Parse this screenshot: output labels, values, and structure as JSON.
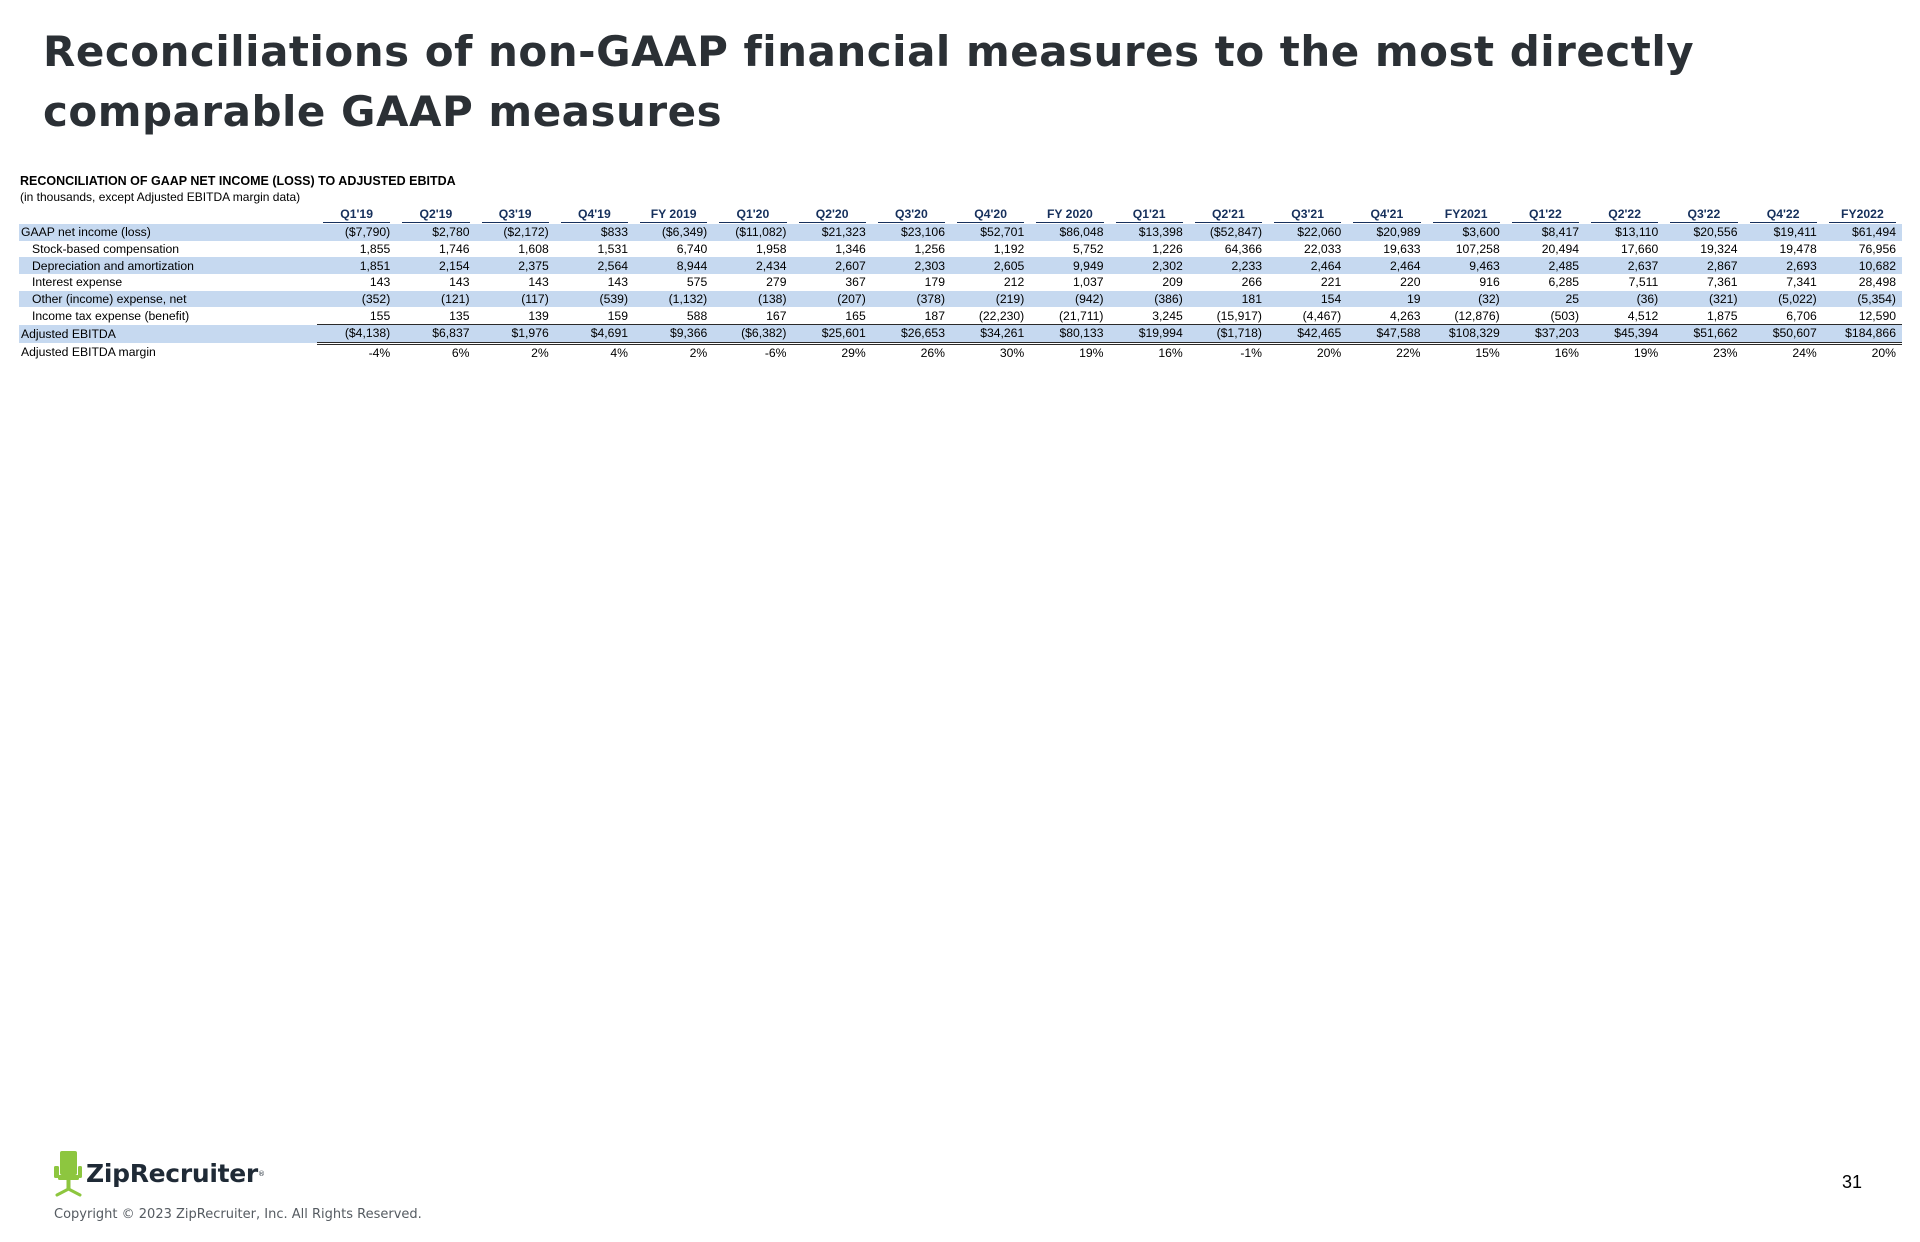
{
  "slide": {
    "title": "Reconciliations of non-GAAP financial measures to the most directly comparable GAAP measures",
    "page_number": "31"
  },
  "table": {
    "heading": "RECONCILIATION OF GAAP NET INCOME (LOSS) TO ADJUSTED EBITDA",
    "subheading": "(in thousands, except Adjusted EBITDA margin data)",
    "columns": [
      "Q1'19",
      "Q2'19",
      "Q3'19",
      "Q4'19",
      "FY 2019",
      "Q1'20",
      "Q2'20",
      "Q3'20",
      "Q4'20",
      "FY 2020",
      "Q1'21",
      "Q2'21",
      "Q3'21",
      "Q4'21",
      "FY2021",
      "Q1'22",
      "Q2'22",
      "Q3'22",
      "Q4'22",
      "FY2022"
    ],
    "rows": [
      {
        "label": "GAAP net income (loss)",
        "values": [
          "($7,790)",
          "$2,780",
          "($2,172)",
          "$833",
          "($6,349)",
          "($11,082)",
          "$21,323",
          "$23,106",
          "$52,701",
          "$86,048",
          "$13,398",
          "($52,847)",
          "$22,060",
          "$20,989",
          "$3,600",
          "$8,417",
          "$13,110",
          "$20,556",
          "$19,411",
          "$61,494"
        ]
      },
      {
        "label": "Stock-based compensation",
        "values": [
          "1,855",
          "1,746",
          "1,608",
          "1,531",
          "6,740",
          "1,958",
          "1,346",
          "1,256",
          "1,192",
          "5,752",
          "1,226",
          "64,366",
          "22,033",
          "19,633",
          "107,258",
          "20,494",
          "17,660",
          "19,324",
          "19,478",
          "76,956"
        ]
      },
      {
        "label": "Depreciation and amortization",
        "values": [
          "1,851",
          "2,154",
          "2,375",
          "2,564",
          "8,944",
          "2,434",
          "2,607",
          "2,303",
          "2,605",
          "9,949",
          "2,302",
          "2,233",
          "2,464",
          "2,464",
          "9,463",
          "2,485",
          "2,637",
          "2,867",
          "2,693",
          "10,682"
        ]
      },
      {
        "label": "Interest expense",
        "values": [
          "143",
          "143",
          "143",
          "143",
          "575",
          "279",
          "367",
          "179",
          "212",
          "1,037",
          "209",
          "266",
          "221",
          "220",
          "916",
          "6,285",
          "7,511",
          "7,361",
          "7,341",
          "28,498"
        ]
      },
      {
        "label": "Other (income) expense, net",
        "values": [
          "(352)",
          "(121)",
          "(117)",
          "(539)",
          "(1,132)",
          "(138)",
          "(207)",
          "(378)",
          "(219)",
          "(942)",
          "(386)",
          "181",
          "154",
          "19",
          "(32)",
          "25",
          "(36)",
          "(321)",
          "(5,022)",
          "(5,354)"
        ]
      },
      {
        "label": "Income tax expense (benefit)",
        "values": [
          "155",
          "135",
          "139",
          "159",
          "588",
          "167",
          "165",
          "187",
          "(22,230)",
          "(21,711)",
          "3,245",
          "(15,917)",
          "(4,467)",
          "4,263",
          "(12,876)",
          "(503)",
          "4,512",
          "1,875",
          "6,706",
          "12,590"
        ]
      },
      {
        "label": "Adjusted EBITDA",
        "values": [
          "($4,138)",
          "$6,837",
          "$1,976",
          "$4,691",
          "$9,366",
          "($6,382)",
          "$25,601",
          "$26,653",
          "$34,261",
          "$80,133",
          "$19,994",
          "($1,718)",
          "$42,465",
          "$47,588",
          "$108,329",
          "$37,203",
          "$45,394",
          "$51,662",
          "$50,607",
          "$184,866"
        ]
      },
      {
        "label": "Adjusted EBITDA margin",
        "values": [
          "-4%",
          "6%",
          "2%",
          "4%",
          "2%",
          "-6%",
          "29%",
          "26%",
          "30%",
          "19%",
          "16%",
          "-1%",
          "20%",
          "22%",
          "15%",
          "16%",
          "19%",
          "23%",
          "24%",
          "20%"
        ]
      }
    ]
  },
  "footer": {
    "logo_text": "ZipRecruiter",
    "logo_mark": "®",
    "logo_icon": "chair-icon",
    "copyright": "Copyright © 2023 ZipRecruiter, Inc. All Rights Reserved."
  },
  "colors": {
    "title": "#2b3035",
    "header_text": "#16305c",
    "row_shade": "#c6d9f0",
    "logo_green": "#8dc63f"
  }
}
